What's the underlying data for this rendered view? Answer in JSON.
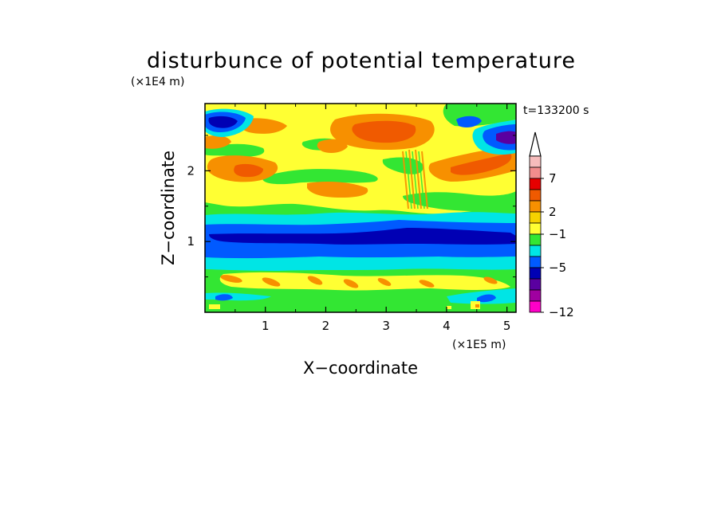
{
  "chart_data": {
    "type": "heatmap",
    "title": "disturbunce of potential temperature",
    "xlabel": "X−coordinate",
    "ylabel": "Z−coordinate",
    "x_scale_label": "(×1E5 m)",
    "y_scale_label": "(×1E4 m)",
    "time_label": "t=133200 s",
    "xlim": [
      0,
      5.15
    ],
    "ylim": [
      0,
      2.95
    ],
    "x_ticks": [
      "1",
      "2",
      "3",
      "4",
      "5"
    ],
    "y_ticks": [
      "1",
      "2"
    ],
    "colorbar": {
      "tick_labels": [
        "7",
        "2",
        "−1",
        "−5",
        "−12"
      ],
      "levels_top_to_bottom": [
        {
          "color": "#f7bcbc"
        },
        {
          "color": "#f28c8c"
        },
        {
          "color": "#e60000"
        },
        {
          "color": "#f05a00"
        },
        {
          "color": "#f79000"
        },
        {
          "color": "#f5d200"
        },
        {
          "color": "#ffff33"
        },
        {
          "color": "#33e633"
        },
        {
          "color": "#00e5e5"
        },
        {
          "color": "#005aff"
        },
        {
          "color": "#0000b4"
        },
        {
          "color": "#5a00a0"
        },
        {
          "color": "#a000a0"
        },
        {
          "color": "#ff00c8"
        }
      ],
      "extend": "max"
    },
    "bands_approx": [
      {
        "z_range": [
          0.0,
          0.18
        ],
        "value": "0 to 2",
        "color": "#33e633"
      },
      {
        "z_range": [
          0.18,
          0.32
        ],
        "value": "0 to 2",
        "color": "#33e633"
      },
      {
        "z_range": [
          0.35,
          0.62
        ],
        "value": "2",
        "color": "#ffff33"
      },
      {
        "z_range": [
          0.62,
          0.82
        ],
        "value": "-1",
        "color": "#00e5e5"
      },
      {
        "z_range": [
          0.82,
          1.32
        ],
        "value": "-3",
        "color": "#005aff"
      },
      {
        "z_range": [
          0.95,
          1.25
        ],
        "value": "-5",
        "color": "#0000b4"
      },
      {
        "z_range": [
          1.32,
          1.5
        ],
        "value": "-1",
        "color": "#00e5e5"
      },
      {
        "z_range": [
          1.5,
          1.75
        ],
        "value": "0",
        "color": "#33e633"
      },
      {
        "z_range": [
          1.75,
          2.95
        ],
        "value": "2",
        "color": "#ffff33"
      },
      {
        "z_range": [
          2.55,
          2.8
        ],
        "value": "4",
        "color": "#f05a00"
      }
    ]
  }
}
